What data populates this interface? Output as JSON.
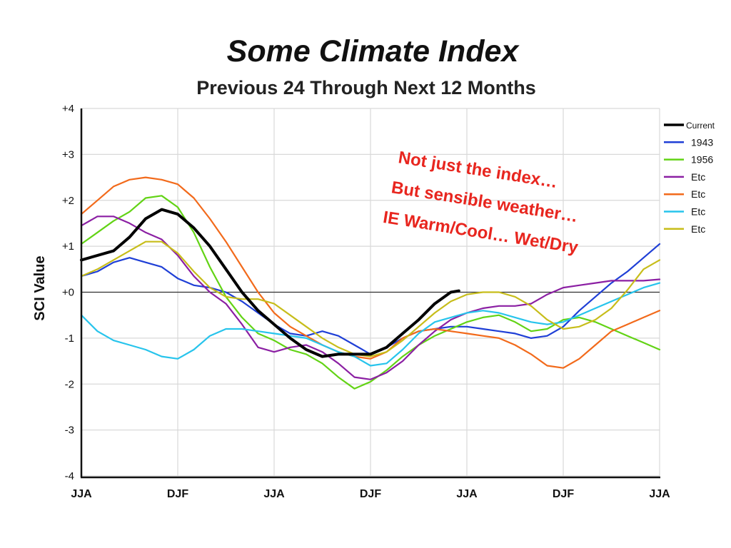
{
  "chart_data": {
    "type": "line",
    "title": "Some Climate Index",
    "subtitle": "Previous 24 Through Next 12 Months",
    "ylabel": "SCI Value",
    "xlabel": "",
    "xlim": [
      0,
      36
    ],
    "ylim": [
      -4,
      4
    ],
    "x_ticks": [
      {
        "x": 0,
        "label": "JJA"
      },
      {
        "x": 6,
        "label": "DJF"
      },
      {
        "x": 12,
        "label": "JJA"
      },
      {
        "x": 18,
        "label": "DJF"
      },
      {
        "x": 24,
        "label": "JJA"
      },
      {
        "x": 30,
        "label": "DJF"
      },
      {
        "x": 36,
        "label": "JJA"
      }
    ],
    "y_ticks": [
      {
        "y": 4,
        "label": "+4"
      },
      {
        "y": 3,
        "label": "+3"
      },
      {
        "y": 2,
        "label": "+2"
      },
      {
        "y": 1,
        "label": "+1"
      },
      {
        "y": 0,
        "label": "+0"
      },
      {
        "y": -1,
        "label": "-1"
      },
      {
        "y": -2,
        "label": "-2"
      },
      {
        "y": -3,
        "label": "-3"
      },
      {
        "y": -4,
        "label": "-4"
      }
    ],
    "grid": true,
    "legend_position": "right",
    "series": [
      {
        "name": "Current",
        "color": "#000000",
        "width": 4,
        "points": [
          [
            0,
            0.7
          ],
          [
            2,
            0.9
          ],
          [
            3,
            1.2
          ],
          [
            4,
            1.6
          ],
          [
            5,
            1.8
          ],
          [
            6,
            1.7
          ],
          [
            7,
            1.4
          ],
          [
            8,
            1.0
          ],
          [
            9,
            0.5
          ],
          [
            10,
            0.0
          ],
          [
            11,
            -0.4
          ],
          [
            12,
            -0.7
          ],
          [
            13,
            -1.0
          ],
          [
            14,
            -1.25
          ],
          [
            15,
            -1.4
          ],
          [
            16,
            -1.35
          ],
          [
            17,
            -1.35
          ],
          [
            18,
            -1.35
          ],
          [
            19,
            -1.2
          ],
          [
            20,
            -0.9
          ],
          [
            21,
            -0.6
          ],
          [
            22,
            -0.25
          ],
          [
            23,
            0.0
          ],
          [
            23.5,
            0.03
          ]
        ]
      },
      {
        "name": "1943",
        "color": "#1f3fd6",
        "width": 2.2,
        "points": [
          [
            0,
            0.35
          ],
          [
            1,
            0.45
          ],
          [
            2,
            0.65
          ],
          [
            3,
            0.75
          ],
          [
            4,
            0.65
          ],
          [
            5,
            0.55
          ],
          [
            6,
            0.3
          ],
          [
            7,
            0.15
          ],
          [
            8,
            0.1
          ],
          [
            9,
            0.0
          ],
          [
            10,
            -0.2
          ],
          [
            11,
            -0.45
          ],
          [
            12,
            -0.7
          ],
          [
            13,
            -0.9
          ],
          [
            14,
            -0.95
          ],
          [
            15,
            -0.85
          ],
          [
            16,
            -0.95
          ],
          [
            17,
            -1.15
          ],
          [
            18,
            -1.35
          ],
          [
            19,
            -1.2
          ],
          [
            20,
            -1.0
          ],
          [
            21,
            -0.85
          ],
          [
            22,
            -0.8
          ],
          [
            23,
            -0.75
          ],
          [
            24,
            -0.75
          ],
          [
            25,
            -0.8
          ],
          [
            26,
            -0.85
          ],
          [
            27,
            -0.9
          ],
          [
            28,
            -1.0
          ],
          [
            29,
            -0.95
          ],
          [
            30,
            -0.75
          ],
          [
            31,
            -0.4
          ],
          [
            32,
            -0.1
          ],
          [
            33,
            0.2
          ],
          [
            34,
            0.45
          ],
          [
            35,
            0.75
          ],
          [
            36,
            1.05
          ]
        ]
      },
      {
        "name": "1956",
        "color": "#62d315",
        "width": 2.2,
        "points": [
          [
            0,
            1.05
          ],
          [
            1,
            1.3
          ],
          [
            2,
            1.55
          ],
          [
            3,
            1.75
          ],
          [
            4,
            2.05
          ],
          [
            5,
            2.1
          ],
          [
            6,
            1.85
          ],
          [
            7,
            1.3
          ],
          [
            8,
            0.55
          ],
          [
            9,
            -0.1
          ],
          [
            10,
            -0.55
          ],
          [
            11,
            -0.9
          ],
          [
            12,
            -1.05
          ],
          [
            13,
            -1.25
          ],
          [
            14,
            -1.35
          ],
          [
            15,
            -1.55
          ],
          [
            16,
            -1.85
          ],
          [
            17,
            -2.1
          ],
          [
            18,
            -1.95
          ],
          [
            19,
            -1.7
          ],
          [
            20,
            -1.4
          ],
          [
            21,
            -1.15
          ],
          [
            22,
            -0.95
          ],
          [
            23,
            -0.8
          ],
          [
            24,
            -0.65
          ],
          [
            25,
            -0.55
          ],
          [
            26,
            -0.5
          ],
          [
            27,
            -0.65
          ],
          [
            28,
            -0.85
          ],
          [
            29,
            -0.8
          ],
          [
            30,
            -0.6
          ],
          [
            31,
            -0.55
          ],
          [
            32,
            -0.65
          ],
          [
            33,
            -0.8
          ],
          [
            34,
            -0.95
          ],
          [
            35,
            -1.1
          ],
          [
            36,
            -1.25
          ]
        ]
      },
      {
        "name": "Etc",
        "color": "#8b1fa3",
        "width": 2.2,
        "points": [
          [
            0,
            1.45
          ],
          [
            1,
            1.65
          ],
          [
            2,
            1.65
          ],
          [
            3,
            1.5
          ],
          [
            4,
            1.3
          ],
          [
            5,
            1.15
          ],
          [
            6,
            0.8
          ],
          [
            7,
            0.35
          ],
          [
            8,
            0.0
          ],
          [
            9,
            -0.25
          ],
          [
            10,
            -0.7
          ],
          [
            11,
            -1.2
          ],
          [
            12,
            -1.3
          ],
          [
            13,
            -1.2
          ],
          [
            14,
            -1.15
          ],
          [
            15,
            -1.3
          ],
          [
            16,
            -1.55
          ],
          [
            17,
            -1.85
          ],
          [
            18,
            -1.9
          ],
          [
            19,
            -1.75
          ],
          [
            20,
            -1.5
          ],
          [
            21,
            -1.15
          ],
          [
            22,
            -0.85
          ],
          [
            23,
            -0.6
          ],
          [
            24,
            -0.45
          ],
          [
            25,
            -0.35
          ],
          [
            26,
            -0.3
          ],
          [
            27,
            -0.3
          ],
          [
            28,
            -0.25
          ],
          [
            29,
            -0.05
          ],
          [
            30,
            0.1
          ],
          [
            31,
            0.15
          ],
          [
            32,
            0.2
          ],
          [
            33,
            0.25
          ],
          [
            34,
            0.25
          ],
          [
            35,
            0.25
          ],
          [
            36,
            0.28
          ]
        ]
      },
      {
        "name": "Etc",
        "color": "#f26a1b",
        "width": 2.2,
        "points": [
          [
            0,
            1.7
          ],
          [
            1,
            2.0
          ],
          [
            2,
            2.3
          ],
          [
            3,
            2.45
          ],
          [
            4,
            2.5
          ],
          [
            5,
            2.45
          ],
          [
            6,
            2.35
          ],
          [
            7,
            2.05
          ],
          [
            8,
            1.6
          ],
          [
            9,
            1.1
          ],
          [
            10,
            0.55
          ],
          [
            11,
            0.0
          ],
          [
            12,
            -0.45
          ],
          [
            13,
            -0.75
          ],
          [
            14,
            -0.95
          ],
          [
            15,
            -1.15
          ],
          [
            16,
            -1.3
          ],
          [
            17,
            -1.4
          ],
          [
            18,
            -1.45
          ],
          [
            19,
            -1.3
          ],
          [
            20,
            -1.0
          ],
          [
            21,
            -0.85
          ],
          [
            22,
            -0.8
          ],
          [
            23,
            -0.85
          ],
          [
            24,
            -0.9
          ],
          [
            25,
            -0.95
          ],
          [
            26,
            -1.0
          ],
          [
            27,
            -1.15
          ],
          [
            28,
            -1.35
          ],
          [
            29,
            -1.6
          ],
          [
            30,
            -1.65
          ],
          [
            31,
            -1.45
          ],
          [
            32,
            -1.15
          ],
          [
            33,
            -0.85
          ],
          [
            34,
            -0.7
          ],
          [
            35,
            -0.55
          ],
          [
            36,
            -0.4
          ]
        ]
      },
      {
        "name": "Etc",
        "color": "#27c4ec",
        "width": 2.2,
        "points": [
          [
            0,
            -0.5
          ],
          [
            1,
            -0.85
          ],
          [
            2,
            -1.05
          ],
          [
            3,
            -1.15
          ],
          [
            4,
            -1.25
          ],
          [
            5,
            -1.4
          ],
          [
            6,
            -1.45
          ],
          [
            7,
            -1.25
          ],
          [
            8,
            -0.95
          ],
          [
            9,
            -0.8
          ],
          [
            10,
            -0.8
          ],
          [
            11,
            -0.85
          ],
          [
            12,
            -0.9
          ],
          [
            13,
            -0.95
          ],
          [
            14,
            -1.0
          ],
          [
            15,
            -1.15
          ],
          [
            16,
            -1.3
          ],
          [
            17,
            -1.4
          ],
          [
            18,
            -1.6
          ],
          [
            19,
            -1.55
          ],
          [
            20,
            -1.25
          ],
          [
            21,
            -0.9
          ],
          [
            22,
            -0.65
          ],
          [
            23,
            -0.55
          ],
          [
            24,
            -0.45
          ],
          [
            25,
            -0.4
          ],
          [
            26,
            -0.45
          ],
          [
            27,
            -0.55
          ],
          [
            28,
            -0.65
          ],
          [
            29,
            -0.7
          ],
          [
            30,
            -0.65
          ],
          [
            31,
            -0.5
          ],
          [
            32,
            -0.35
          ],
          [
            33,
            -0.2
          ],
          [
            34,
            -0.05
          ],
          [
            35,
            0.1
          ],
          [
            36,
            0.2
          ]
        ]
      },
      {
        "name": "Etc",
        "color": "#c7bd1a",
        "width": 2.2,
        "points": [
          [
            0,
            0.35
          ],
          [
            1,
            0.5
          ],
          [
            2,
            0.7
          ],
          [
            3,
            0.9
          ],
          [
            4,
            1.1
          ],
          [
            5,
            1.1
          ],
          [
            6,
            0.85
          ],
          [
            7,
            0.45
          ],
          [
            8,
            0.1
          ],
          [
            9,
            -0.1
          ],
          [
            10,
            -0.15
          ],
          [
            11,
            -0.15
          ],
          [
            12,
            -0.25
          ],
          [
            13,
            -0.5
          ],
          [
            14,
            -0.75
          ],
          [
            15,
            -1.0
          ],
          [
            16,
            -1.2
          ],
          [
            17,
            -1.35
          ],
          [
            18,
            -1.4
          ],
          [
            19,
            -1.3
          ],
          [
            20,
            -1.05
          ],
          [
            21,
            -0.75
          ],
          [
            22,
            -0.45
          ],
          [
            23,
            -0.2
          ],
          [
            24,
            -0.05
          ],
          [
            25,
            0.0
          ],
          [
            26,
            0.0
          ],
          [
            27,
            -0.1
          ],
          [
            28,
            -0.3
          ],
          [
            29,
            -0.6
          ],
          [
            30,
            -0.8
          ],
          [
            31,
            -0.75
          ],
          [
            32,
            -0.6
          ],
          [
            33,
            -0.35
          ],
          [
            34,
            0.05
          ],
          [
            35,
            0.5
          ],
          [
            36,
            0.7
          ]
        ]
      }
    ],
    "annotation": {
      "lines": [
        "Not just the index…",
        "But sensible weather…",
        "IE  Warm/Cool… Wet/Dry"
      ],
      "color": "#e8261f"
    }
  }
}
